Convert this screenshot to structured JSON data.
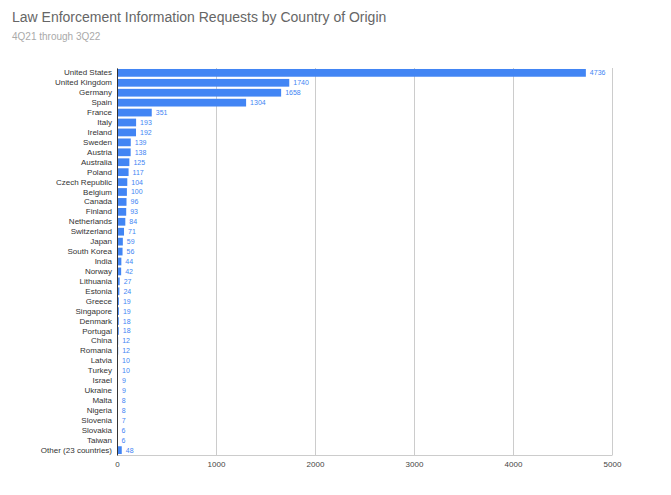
{
  "chart_data": {
    "type": "bar",
    "orientation": "horizontal",
    "title": "Law Enforcement Information Requests by Country of Origin",
    "subtitle": "4Q21 through 3Q22",
    "categories": [
      "United States",
      "United Kingdom",
      "Germany",
      "Spain",
      "France",
      "Italy",
      "Ireland",
      "Sweden",
      "Austria",
      "Australia",
      "Poland",
      "Czech Republic",
      "Belgium",
      "Canada",
      "Finland",
      "Netherlands",
      "Switzerland",
      "Japan",
      "South Korea",
      "India",
      "Norway",
      "Lithuania",
      "Estonia",
      "Greece",
      "Singapore",
      "Denmark",
      "Portugal",
      "China",
      "Romania",
      "Latvia",
      "Turkey",
      "Israel",
      "Ukraine",
      "Malta",
      "Nigeria",
      "Slovenia",
      "Slovakia",
      "Taiwan",
      "Other (23 countries)"
    ],
    "values": [
      4736,
      1740,
      1658,
      1304,
      351,
      193,
      192,
      139,
      138,
      125,
      117,
      104,
      100,
      96,
      93,
      84,
      71,
      59,
      56,
      44,
      42,
      27,
      24,
      19,
      19,
      18,
      18,
      12,
      12,
      10,
      10,
      9,
      9,
      8,
      8,
      7,
      6,
      6,
      48
    ],
    "color": "#4285f4",
    "data_labels": true,
    "grid": true,
    "xlim": [
      0,
      5000
    ],
    "xticks": [
      0,
      1000,
      2000,
      3000,
      4000,
      5000
    ]
  }
}
